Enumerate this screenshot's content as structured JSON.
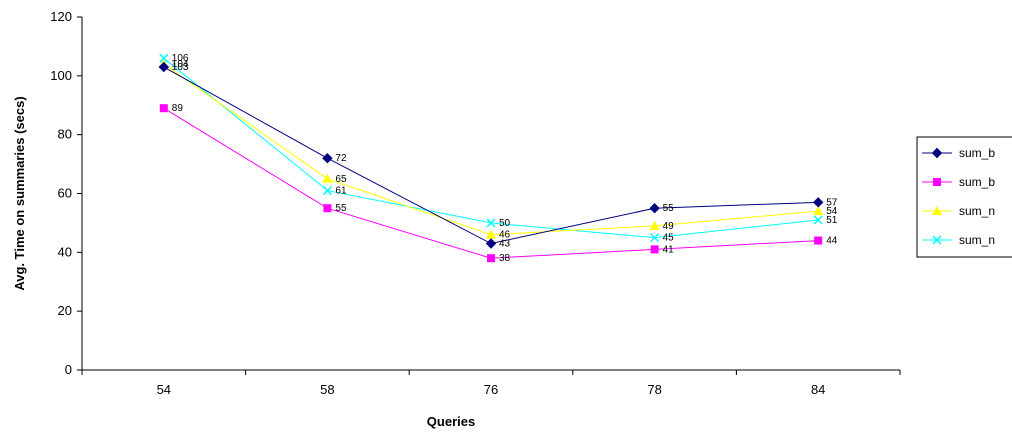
{
  "chart_data": {
    "type": "line",
    "title": "",
    "xlabel": "Queries",
    "ylabel": "Avg. Time on summaries (secs)",
    "categories": [
      "54",
      "58",
      "76",
      "78",
      "84"
    ],
    "ylim": [
      0,
      120
    ],
    "yticks": [
      0,
      20,
      40,
      60,
      80,
      100,
      120
    ],
    "y_tick_labels": [
      "0",
      "20",
      "40",
      "60",
      "80",
      "100",
      "120"
    ],
    "grid": false,
    "legend_position": "right",
    "series": [
      {
        "name": "sum_b",
        "color": "#000080",
        "marker": "diamond",
        "values": [
          103,
          72,
          43,
          55,
          57
        ],
        "labels": [
          "103",
          "72",
          "43",
          "55",
          "57"
        ]
      },
      {
        "name": "sum_b",
        "color": "#FF00FF",
        "marker": "square",
        "values": [
          89,
          55,
          38,
          41,
          44
        ],
        "labels": [
          "89",
          "55",
          "38",
          "41",
          "44"
        ]
      },
      {
        "name": "sum_n",
        "color": "#FFFF00",
        "marker": "triangle",
        "values": [
          104,
          65,
          46,
          49,
          54
        ],
        "labels": [
          "104",
          "65",
          "46",
          "49",
          "54"
        ]
      },
      {
        "name": "sum_n",
        "color": "#00FFFF",
        "marker": "x",
        "values": [
          106,
          61,
          50,
          45,
          51
        ],
        "labels": [
          "106",
          "61",
          "50",
          "45",
          "51"
        ]
      }
    ]
  }
}
